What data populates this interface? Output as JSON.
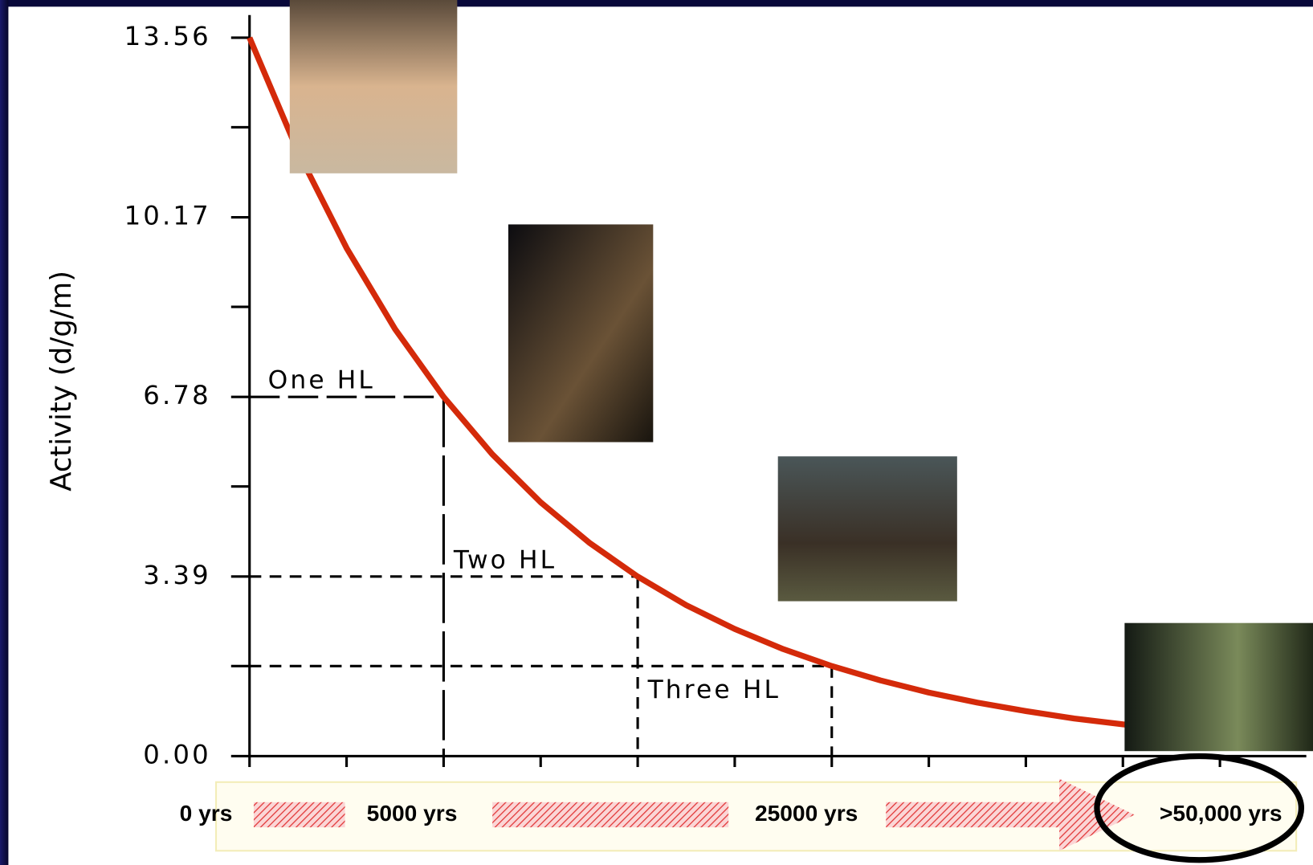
{
  "chart_data": {
    "type": "line",
    "y_label": "Activity (d/g/m)",
    "x": [
      0,
      1433,
      2865,
      4298,
      5730,
      7163,
      8595,
      10028,
      11460,
      12893,
      14325,
      15758,
      17190,
      18623,
      20055,
      21488,
      22920,
      24353,
      25785,
      27218,
      28650,
      30083
    ],
    "series": [
      {
        "color": "#d42a0a",
        "values": [
          13.56,
          11.4,
          9.59,
          8.06,
          6.78,
          5.7,
          4.79,
          4.03,
          3.39,
          2.85,
          2.4,
          2.02,
          1.7,
          1.43,
          1.2,
          1.01,
          0.85,
          0.71,
          0.6,
          0.5,
          0.42,
          0.36
        ]
      }
    ],
    "xlim": [
      0,
      31200
    ],
    "xticks": [
      0,
      2865,
      5730,
      8595,
      11460,
      14325,
      17190,
      20055,
      22920,
      25785,
      28650
    ],
    "ylim": [
      0,
      13.56
    ],
    "yticks": [
      {
        "value": 0,
        "label": "0.00"
      },
      3.39,
      6.78,
      10.17,
      13.56
    ],
    "yticks_minor": [
      1.7,
      5.09,
      8.48,
      11.87
    ],
    "annotations": [
      {
        "text": "One HL",
        "x": 5730,
        "y": 6.78
      },
      {
        "text": "Two HL",
        "x": 11460,
        "y": 3.39
      },
      {
        "text": "Three HL",
        "x": 17190,
        "y": 1.7
      }
    ]
  },
  "timeline": {
    "labels": [
      "0 yrs",
      "5000 yrs",
      "25000 yrs",
      ">50,000 yrs"
    ]
  }
}
